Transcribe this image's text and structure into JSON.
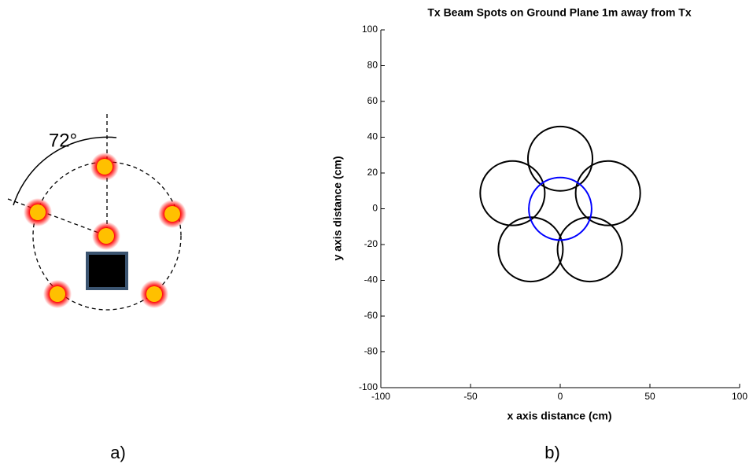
{
  "figure_a": {
    "angle_label": "72°",
    "caption": "a)"
  },
  "figure_b": {
    "caption": "b)"
  },
  "chart_data": {
    "type": "circles",
    "title": "Tx Beam Spots on Ground Plane 1m away from Tx",
    "x_label": "x axis distance (cm)",
    "y_label": "y axis distance (cm)",
    "xlim": [
      -100,
      100
    ],
    "ylim": [
      -100,
      100
    ],
    "xticks": [
      -100,
      -50,
      0,
      50,
      100
    ],
    "yticks": [
      -100,
      -80,
      -60,
      -40,
      -20,
      0,
      20,
      40,
      60,
      80,
      100
    ],
    "series": [
      {
        "color": "#000000",
        "x": [
          0,
          26.6,
          16.5,
          -16.5,
          -26.6
        ],
        "values": [
          28,
          8.7,
          -22.7,
          -22.7,
          8.7
        ],
        "r": [
          18,
          18,
          18,
          18,
          18
        ]
      },
      {
        "color": "#0000ff",
        "x": [
          0
        ],
        "values": [
          0
        ],
        "r": [
          17.5
        ]
      }
    ]
  }
}
